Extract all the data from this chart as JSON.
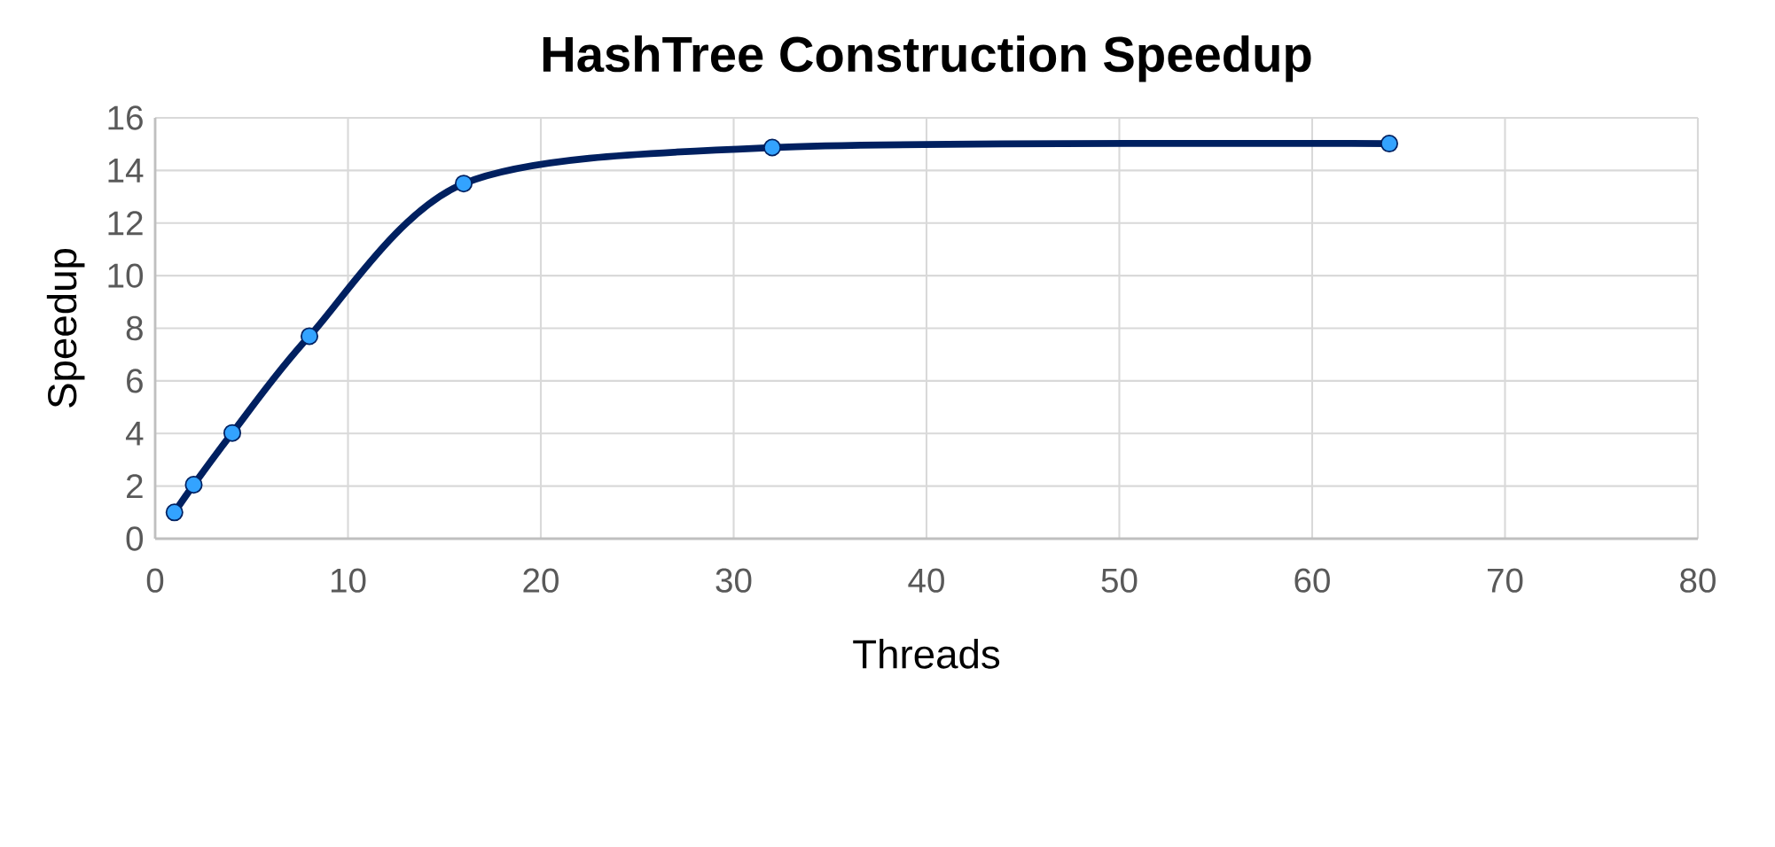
{
  "chart_data": {
    "type": "line",
    "title": "HashTree Construction Speedup",
    "xlabel": "Threads",
    "ylabel": "Speedup",
    "x": [
      1,
      2,
      4,
      8,
      16,
      32,
      64
    ],
    "series": [
      {
        "color": "#002060",
        "values": [
          1,
          2.05,
          4.02,
          7.7,
          13.5,
          14.87,
          15.02
        ]
      }
    ],
    "xlim": [
      0,
      80
    ],
    "xticks": [
      0,
      10,
      20,
      30,
      40,
      50,
      60,
      70,
      80
    ],
    "ylim": [
      0,
      16
    ],
    "yticks": [
      0,
      2,
      4,
      6,
      8,
      10,
      12,
      14,
      16
    ],
    "grid": true,
    "marker": "circle",
    "line_style": "solid"
  }
}
